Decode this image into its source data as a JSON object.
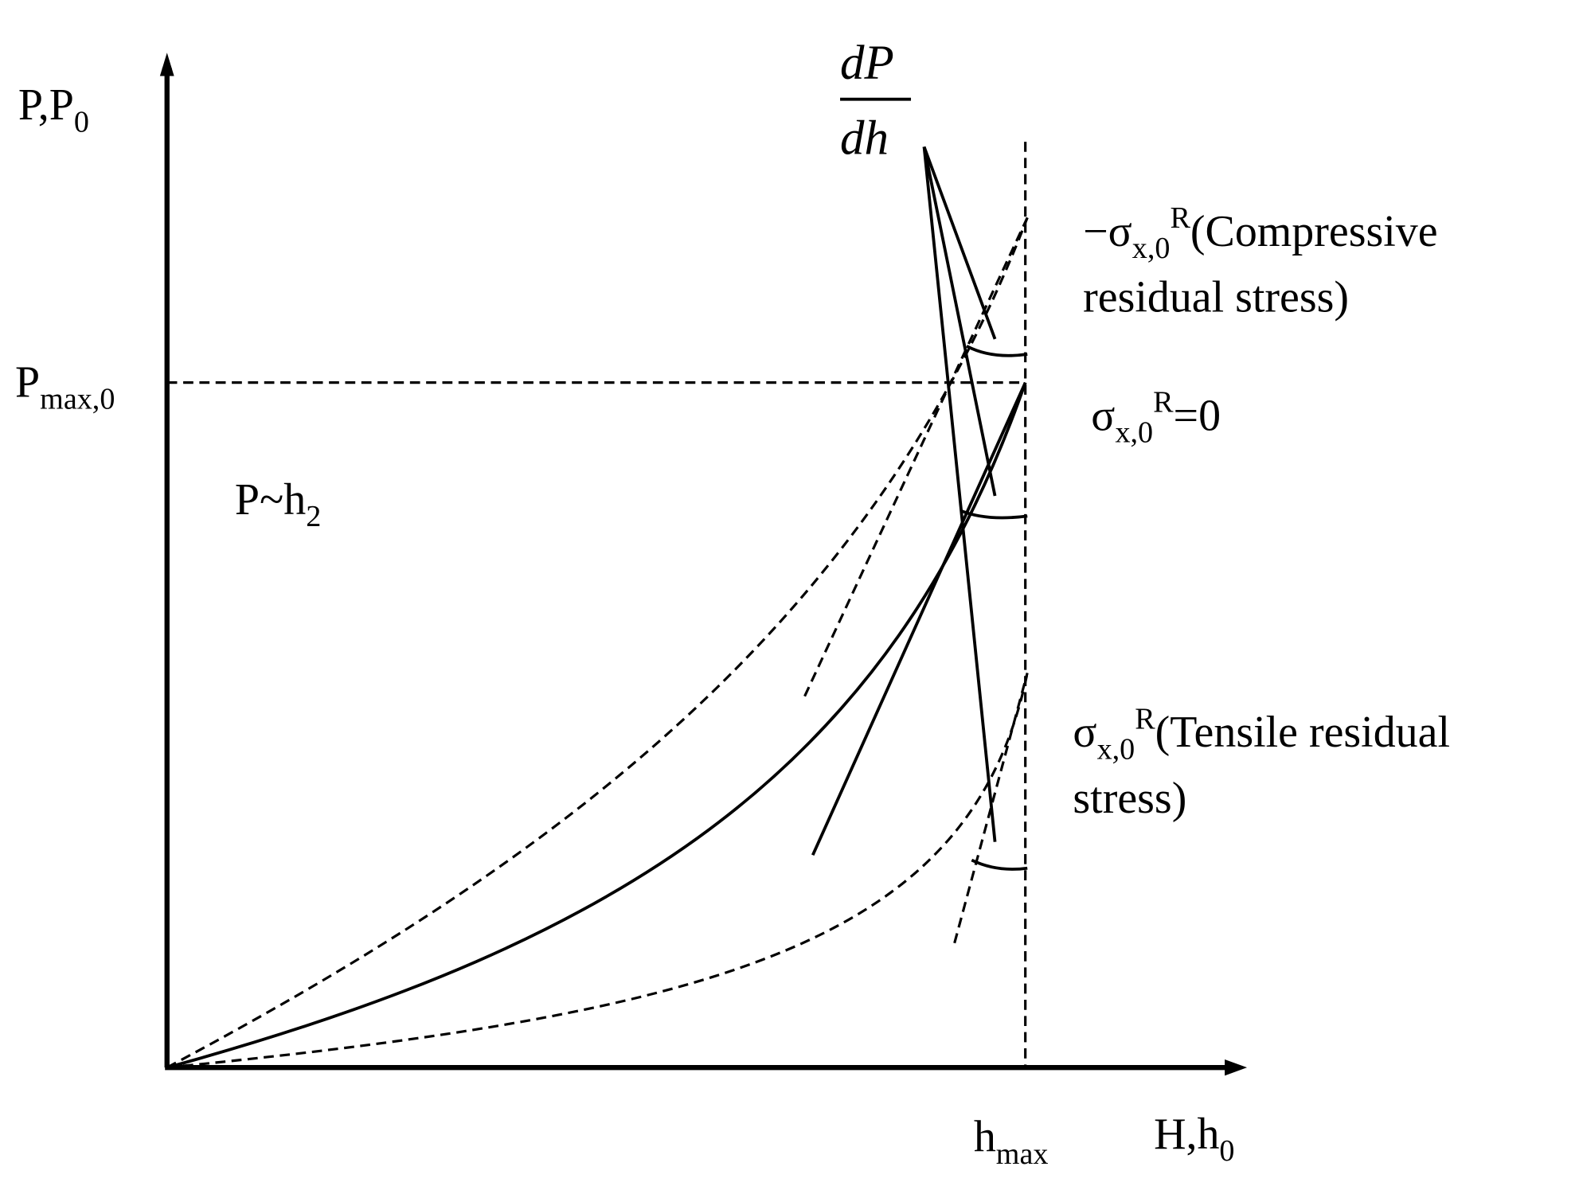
{
  "axes": {
    "y_label": {
      "text": "P,P",
      "sub": "0"
    },
    "x_label": {
      "text": "H,h",
      "sub": "0"
    }
  },
  "markers": {
    "p_max": {
      "text": "P",
      "sub": "max,0"
    },
    "h_max": {
      "text": "h",
      "sub": "max"
    }
  },
  "annotations": {
    "power_law": {
      "text": "P~h",
      "sub": "2"
    },
    "slope": {
      "numerator": "dP",
      "denominator": "dh"
    }
  },
  "curves": [
    {
      "prefix": "−σ",
      "sub": "x,0",
      "sup": "R",
      "suffix": "(Compressive",
      "line2": "residual stress)"
    },
    {
      "prefix": "σ",
      "sub": "x,0",
      "sup": "R",
      "suffix": "=0"
    },
    {
      "prefix": "σ",
      "sub": "x,0",
      "sup": "R",
      "suffix": "(Tensile residual",
      "line2": "stress)"
    }
  ]
}
